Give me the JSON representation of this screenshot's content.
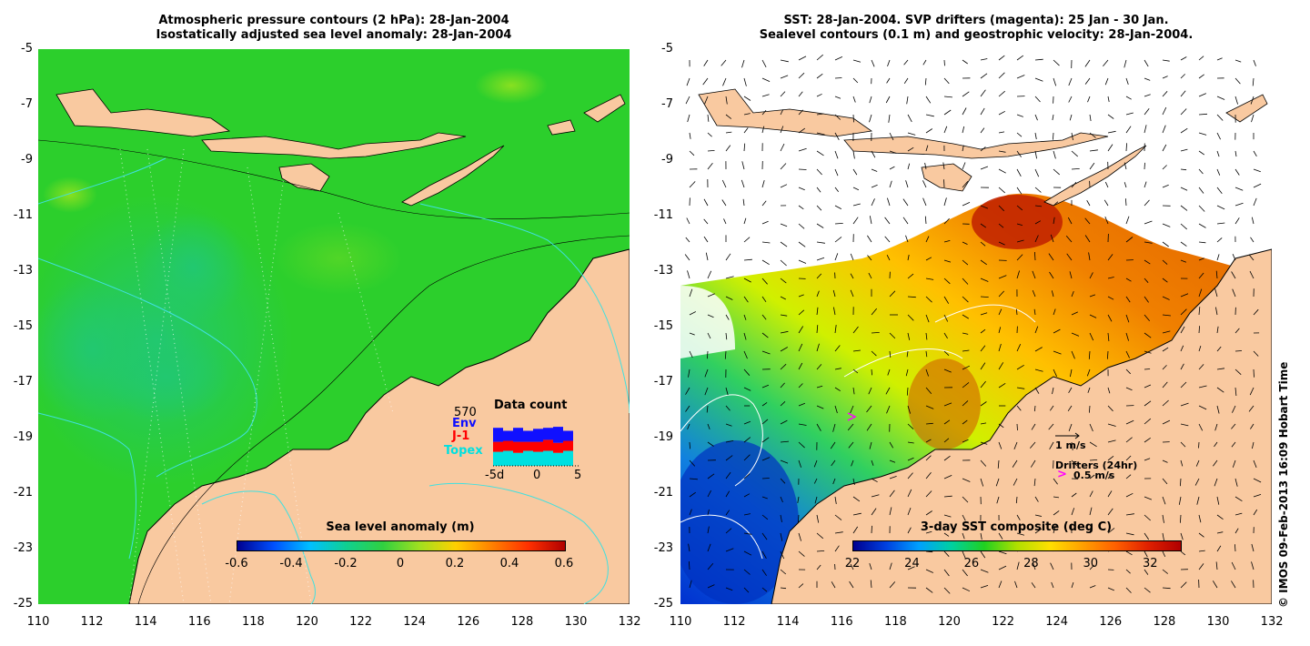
{
  "left_panel": {
    "title_line1": "Atmospheric pressure contours (2 hPa): 28-Jan-2004",
    "title_line2": "Isostatically adjusted sea level anomaly: 28-Jan-2004",
    "colorbar": {
      "label": "Sea level anomaly (m)",
      "ticks": [
        "-0.6",
        "-0.4",
        "-0.2",
        "0",
        "0.2",
        "0.4",
        "0.6"
      ],
      "range": [
        -0.6,
        0.6
      ]
    },
    "data_count": {
      "title": "Data count",
      "total": "570",
      "satellites": [
        "Env",
        "J-1",
        "Topex"
      ],
      "satellite_colors": [
        "#1010ff",
        "#ff0000",
        "#00e0e0"
      ],
      "x_ticks": [
        "-5d",
        "0",
        "5"
      ],
      "bars": [
        {
          "topex": 14,
          "j1": 10,
          "env": 14
        },
        {
          "topex": 15,
          "j1": 10,
          "env": 10
        },
        {
          "topex": 13,
          "j1": 11,
          "env": 14
        },
        {
          "topex": 15,
          "j1": 9,
          "env": 11
        },
        {
          "topex": 14,
          "j1": 10,
          "env": 13
        },
        {
          "topex": 15,
          "j1": 11,
          "env": 12
        },
        {
          "topex": 13,
          "j1": 10,
          "env": 16
        },
        {
          "topex": 15,
          "j1": 10,
          "env": 10
        }
      ]
    }
  },
  "right_panel": {
    "title_line1": "SST: 28-Jan-2004. SVP drifters (magenta): 25 Jan - 30 Jan.",
    "title_line2": "Sealevel contours (0.1 m) and geostrophic velocity: 28-Jan-2004.",
    "colorbar": {
      "label": "3-day SST composite (deg C)",
      "ticks": [
        "22",
        "24",
        "26",
        "28",
        "30",
        "32"
      ],
      "range": [
        22,
        33
      ]
    },
    "velocity_legend": "1 m/s",
    "drifter_legend_title": "Drifters (24hr)",
    "drifter_legend_value": "0.5 m/s",
    "drifter_color": "#ff00ff"
  },
  "axes": {
    "lon_ticks": [
      "110",
      "112",
      "114",
      "116",
      "118",
      "120",
      "122",
      "124",
      "126",
      "128",
      "130",
      "132"
    ],
    "lat_ticks": [
      "-5",
      "-7",
      "-9",
      "-11",
      "-13",
      "-15",
      "-17",
      "-19",
      "-21",
      "-23",
      "-25"
    ],
    "lon_range": [
      110,
      132
    ],
    "lat_range": [
      -25,
      -5
    ]
  },
  "colors": {
    "land": "#f9c9a0",
    "ocean_anomaly": "#22cc22",
    "contour_pressure": "#40e0e0",
    "no_data": "#ffffff"
  },
  "copyright": "© IMOS 09-Feb-2013 16:09 Hobart Time"
}
